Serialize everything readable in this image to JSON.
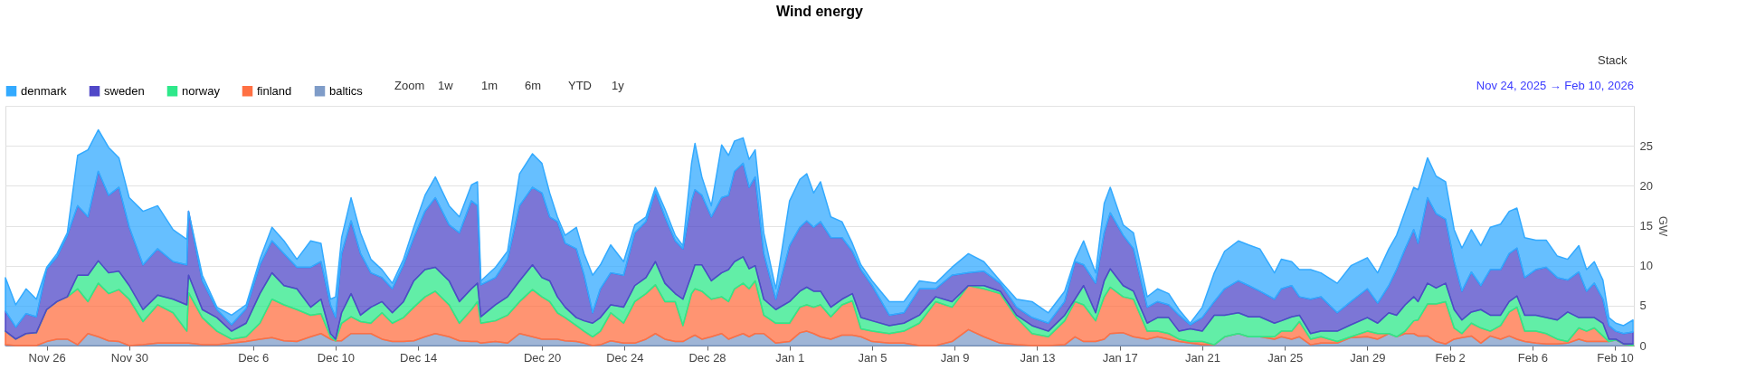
{
  "chart_data": {
    "type": "area",
    "title": "Wind energy",
    "ylabel": "GW",
    "stacked": true,
    "grid": "y",
    "legend": "top left",
    "annotations": [
      "Zoom",
      "1w",
      "1m",
      "6m",
      "YTD",
      "1y",
      "Stack",
      "Nov 24, 2025 → Feb 10, 2026"
    ],
    "xlim": [
      "2025-11-24T00:00",
      "2026-02-10T22:00"
    ],
    "xticks": [
      {
        "value": "2025-11-26",
        "label": "Nov 26"
      },
      {
        "value": "2025-11-30",
        "label": "Nov 30"
      },
      {
        "value": "2025-12-06",
        "label": "Dec 6"
      },
      {
        "value": "2025-12-10",
        "label": "Dec 10"
      },
      {
        "value": "2025-12-14",
        "label": "Dec 14"
      },
      {
        "value": "2025-12-20",
        "label": "Dec 20"
      },
      {
        "value": "2025-12-24",
        "label": "Dec 24"
      },
      {
        "value": "2025-12-28",
        "label": "Dec 28"
      },
      {
        "value": "2026-01-01",
        "label": "Jan 1"
      },
      {
        "value": "2026-01-05",
        "label": "Jan 5"
      },
      {
        "value": "2026-01-09",
        "label": "Jan 9"
      },
      {
        "value": "2026-01-13",
        "label": "Jan 13"
      },
      {
        "value": "2026-01-17",
        "label": "Jan 17"
      },
      {
        "value": "2026-01-21",
        "label": "Jan 21"
      },
      {
        "value": "2026-01-25",
        "label": "Jan 25"
      },
      {
        "value": "2026-01-29",
        "label": "Jan 29"
      },
      {
        "value": "2026-02-02",
        "label": "Feb 2"
      },
      {
        "value": "2026-02-06",
        "label": "Feb 6"
      },
      {
        "value": "2026-02-10",
        "label": "Feb 10"
      }
    ],
    "ylim": [
      0,
      30
    ],
    "yticks": [
      0,
      5,
      10,
      15,
      20,
      25,
      {
        "value": 30,
        "label": null
      }
    ],
    "x": [
      "2025-11-24T00:00",
      "2025-11-24T12:00",
      "2025-11-25T00:00",
      "2025-11-25T12:00",
      "2025-11-26T00:00",
      "2025-11-26T12:00",
      "2025-11-27T00:00",
      "2025-11-27T12:00",
      "2025-11-28T00:00",
      "2025-11-28T12:00",
      "2025-11-29T00:00",
      "2025-11-29T12:00",
      "2025-11-30T00:00",
      "2025-11-30T16:00",
      "2025-12-01T09:00",
      "2025-12-02T03:00",
      "2025-12-02T19:00",
      "2025-12-02T21:00",
      "2025-12-03T13:00",
      "2025-12-04T06:00",
      "2025-12-04T23:00",
      "2025-12-05T16:00",
      "2025-12-06T08:00",
      "2025-12-06T22:00",
      "2025-12-07T12:00",
      "2025-12-08T03:00",
      "2025-12-08T19:00",
      "2025-12-09T07:00",
      "2025-12-09T18:00",
      "2025-12-10T00:00",
      "2025-12-10T07:00",
      "2025-12-10T18:00",
      "2025-12-11T05:00",
      "2025-12-11T17:00",
      "2025-12-12T06:00",
      "2025-12-12T18:00",
      "2025-12-13T07:00",
      "2025-12-13T19:00",
      "2025-12-14T08:00",
      "2025-12-14T20:00",
      "2025-12-15T12:00",
      "2025-12-16T00:00",
      "2025-12-16T14:00",
      "2025-12-16T21:00",
      "2025-12-17T01:00",
      "2025-12-17T18:00",
      "2025-12-18T08:00",
      "2025-12-18T22:00",
      "2025-12-19T13:00",
      "2025-12-20T00:00",
      "2025-12-20T09:00",
      "2025-12-20T18:00",
      "2025-12-21T03:00",
      "2025-12-21T16:00",
      "2025-12-22T01:00",
      "2025-12-22T11:00",
      "2025-12-22T20:00",
      "2025-12-23T08:00",
      "2025-12-23T23:00",
      "2025-12-24T12:00",
      "2025-12-25T01:00",
      "2025-12-25T12:00",
      "2025-12-25T23:00",
      "2025-12-26T11:00",
      "2025-12-26T20:00",
      "2025-12-27T06:00",
      "2025-12-27T10:00",
      "2025-12-27T18:00",
      "2025-12-28T05:00",
      "2025-12-28T17:00",
      "2025-12-29T01:00",
      "2025-12-29T08:00",
      "2025-12-29T18:00",
      "2025-12-30T01:00",
      "2025-12-30T08:00",
      "2025-12-30T18:00",
      "2025-12-31T08:00",
      "2026-01-01T00:00",
      "2026-01-01T12:00",
      "2026-01-01T20:00",
      "2026-01-02T04:00",
      "2026-01-02T12:00",
      "2026-01-03T00:00",
      "2026-01-03T13:00",
      "2026-01-04T01:00",
      "2026-01-04T11:00",
      "2026-01-05T00:00",
      "2026-01-05T20:00",
      "2026-01-06T13:00",
      "2026-01-07T07:00",
      "2026-01-08T02:00",
      "2026-01-08T21:00",
      "2026-01-09T16:00",
      "2026-01-10T10:00",
      "2026-01-11T05:00",
      "2026-01-12T00:00",
      "2026-01-12T18:00",
      "2026-01-13T13:00",
      "2026-01-14T08:00",
      "2026-01-14T20:00",
      "2026-01-15T06:00",
      "2026-01-15T20:00",
      "2026-01-16T06:00",
      "2026-01-16T13:00",
      "2026-01-17T04:00",
      "2026-01-17T16:00",
      "2026-01-18T08:00",
      "2026-01-18T20:00",
      "2026-01-19T09:00",
      "2026-01-19T21:00",
      "2026-01-20T10:00",
      "2026-01-21T00:00",
      "2026-01-21T14:00",
      "2026-01-22T02:00",
      "2026-01-22T18:00",
      "2026-01-23T06:00",
      "2026-01-23T19:00",
      "2026-01-24T12:00",
      "2026-01-24T20:00",
      "2026-01-25T08:00",
      "2026-01-25T17:00",
      "2026-01-26T06:00",
      "2026-01-26T18:00",
      "2026-01-27T13:00",
      "2026-01-28T05:00",
      "2026-01-29T00:00",
      "2026-01-29T12:00",
      "2026-01-30T01:00",
      "2026-01-30T10:00",
      "2026-01-30T20:00",
      "2026-01-31T06:00",
      "2026-01-31T11:00",
      "2026-01-31T22:00",
      "2026-02-01T08:00",
      "2026-02-01T19:00",
      "2026-02-02T05:00",
      "2026-02-02T14:00",
      "2026-02-03T01:00",
      "2026-02-03T12:00",
      "2026-02-03T23:00",
      "2026-02-04T11:00",
      "2026-02-04T21:00",
      "2026-02-05T06:00",
      "2026-02-05T15:00",
      "2026-02-06T04:00",
      "2026-02-06T16:00",
      "2026-02-07T05:00",
      "2026-02-07T17:00",
      "2026-02-08T06:00",
      "2026-02-08T15:00",
      "2026-02-09T00:00",
      "2026-02-09T10:00",
      "2026-02-09T17:00",
      "2026-02-10T01:00",
      "2026-02-10T10:00",
      "2026-02-10T21:00"
    ],
    "series": [
      {
        "name": "baltics",
        "color": "#7f9cc8",
        "values": [
          0.1,
          0,
          0,
          0,
          0.5,
          0.8,
          0.8,
          0.1,
          1.5,
          1.1,
          0.6,
          0.5,
          0,
          0.1,
          0.3,
          0.3,
          0.3,
          0.3,
          0.1,
          0.1,
          0.3,
          0.5,
          0.8,
          1.0,
          0.6,
          0.5,
          1.1,
          1.5,
          0.8,
          0.6,
          0.6,
          1.5,
          1.5,
          1.5,
          0.8,
          0.5,
          0.5,
          0.6,
          1.1,
          1.5,
          1.1,
          0.6,
          0.5,
          0.5,
          0.3,
          0.5,
          0.3,
          1.5,
          1.1,
          0.8,
          0.8,
          0.8,
          0.6,
          0.5,
          0.3,
          0,
          0.1,
          0.6,
          0.3,
          0.3,
          0.8,
          1.5,
          0.8,
          0.5,
          0.5,
          1.1,
          1.3,
          0.8,
          1.1,
          1.5,
          0.8,
          1.1,
          1.5,
          1.1,
          1.5,
          1.5,
          0.3,
          0.5,
          1.6,
          1.8,
          1.5,
          1.1,
          0.8,
          1.3,
          1.3,
          1.1,
          0.5,
          0.3,
          0.3,
          0,
          0,
          0.5,
          2.0,
          1.1,
          0.3,
          0.1,
          0,
          0,
          0.1,
          1.1,
          0.5,
          0.5,
          0.8,
          1.5,
          1.6,
          1.1,
          0.8,
          1.1,
          0.8,
          0.5,
          0.3,
          0.1,
          0.1,
          1.1,
          1.5,
          1.1,
          1.1,
          0.8,
          1.1,
          0.8,
          1.1,
          0.1,
          0.3,
          0.3,
          1.0,
          1.1,
          0.8,
          1.5,
          1.1,
          1.5,
          1.5,
          1.2,
          1.2,
          0.5,
          0.2,
          0.8,
          1.0,
          1.2,
          0.3,
          1.2,
          0.8,
          1.2,
          0.8,
          0.5,
          0.3,
          0.2,
          0.2,
          0.3,
          0.8,
          0.5,
          0.5,
          0.5,
          0.5,
          0.7,
          0.2,
          0
        ]
      },
      {
        "name": "finland",
        "color": "#ff7043",
        "values": [
          1.7,
          0.8,
          1.5,
          1.6,
          4.0,
          4.7,
          5.3,
          7.0,
          4.0,
          6.7,
          5.9,
          6.5,
          5.8,
          2.9,
          4.8,
          3.8,
          1.5,
          6.3,
          3.4,
          1.7,
          0.5,
          0.6,
          2.0,
          4.8,
          4.5,
          4.0,
          2.7,
          2.5,
          0.3,
          0,
          2.2,
          2.1,
          1.5,
          1.3,
          3.3,
          2.3,
          3.0,
          4.2,
          5.0,
          5.3,
          4.0,
          2.2,
          4.0,
          5.0,
          2.5,
          2.6,
          3.5,
          4.0,
          5.9,
          5.3,
          4.7,
          3.3,
          2.9,
          2.0,
          1.5,
          1.1,
          1.7,
          3.5,
          2.5,
          5.2,
          5.7,
          6.1,
          4.7,
          5.0,
          2.0,
          5.4,
          5.8,
          6.0,
          4.7,
          4.6,
          4.7,
          6.0,
          6.3,
          6.0,
          6.6,
          2.3,
          2.5,
          2.3,
          3.2,
          3.3,
          3.3,
          4.0,
          2.8,
          3.8,
          4.3,
          1.0,
          1.3,
          1.2,
          1.5,
          2.8,
          5.5,
          4.3,
          5.5,
          6.0,
          6.2,
          3.4,
          1.5,
          1.1,
          3.0,
          4.4,
          4.6,
          2.6,
          5.3,
          5.8,
          4.5,
          4.7,
          1.0,
          0.7,
          0.7,
          0.3,
          0.2,
          0.4,
          0,
          0,
          0,
          0,
          0,
          0.3,
          0.7,
          1.0,
          1.9,
          0.7,
          0.8,
          0.2,
          0.1,
          0.7,
          0.7,
          0,
          0,
          0.3,
          1.6,
          2.0,
          4.0,
          4.7,
          5.3,
          1.4,
          0.5,
          1.6,
          1.9,
          0.6,
          1.7,
          3.0,
          4.0,
          1.3,
          1.5,
          1.3,
          0.6,
          0.2,
          1.4,
          1.3,
          1.7,
          0.7,
          0,
          0,
          0,
          0
        ]
      },
      {
        "name": "norway",
        "color": "#2ee88a",
        "values": [
          0,
          0,
          0,
          0,
          0,
          0,
          0,
          1.7,
          3.3,
          2.8,
          2.6,
          2.3,
          1.7,
          1.5,
          1.2,
          1.7,
          3.3,
          2.2,
          1.0,
          1.7,
          1.0,
          1.7,
          3.7,
          3.3,
          2.4,
          2.6,
          1.0,
          1.8,
          0.4,
          0.2,
          1.3,
          2.9,
          0.8,
          2.0,
          1.4,
          1.3,
          2.0,
          3.3,
          3.4,
          3.0,
          3.0,
          2.7,
          2.6,
          2.3,
          0.8,
          2.0,
          2.3,
          2.6,
          3.1,
          2.4,
          2.6,
          2.0,
          1.3,
          1.0,
          1.3,
          1.7,
          1.7,
          1.0,
          2.0,
          2.0,
          2.0,
          2.9,
          2.3,
          1.0,
          3.3,
          2.3,
          3.0,
          3.3,
          2.3,
          3.0,
          4.0,
          3.4,
          3.3,
          2.5,
          1.9,
          2.0,
          1.7,
          2.7,
          2.0,
          2.2,
          2.0,
          1.7,
          1.2,
          0.7,
          0.9,
          1.4,
          1.3,
          1.0,
          1.0,
          1.0,
          0.6,
          0.7,
          0,
          0.4,
          0.3,
          0.3,
          1.0,
          0.7,
          0.7,
          0.3,
          2.4,
          1.0,
          2.0,
          2.3,
          1.4,
          1.0,
          1.0,
          1.7,
          2.0,
          1.0,
          1.6,
          1.3,
          3.7,
          2.7,
          2.6,
          2.5,
          2.5,
          1.7,
          1.3,
          1.8,
          0.8,
          0.7,
          0.7,
          1.3,
          1.5,
          1.7,
          1.3,
          2.6,
          2.7,
          3.3,
          3.0,
          2.3,
          2.6,
          2.0,
          2.3,
          2.3,
          1.7,
          1.4,
          2.3,
          2.0,
          1.3,
          1.3,
          1.4,
          2.0,
          2.0,
          2.0,
          2.4,
          3.7,
          1.3,
          1.7,
          1.3,
          1.6,
          0.3,
          0.1,
          0,
          0.2
        ]
      },
      {
        "name": "sweden",
        "color": "#5048c8",
        "values": [
          2.5,
          1.5,
          2.5,
          2.0,
          5.1,
          5.6,
          7.7,
          8.7,
          7.3,
          11.2,
          9.7,
          10.5,
          7.3,
          5.6,
          5.8,
          4.7,
          5.0,
          8.0,
          3.6,
          1.0,
          0.8,
          1.8,
          3.6,
          4.0,
          4.0,
          2.7,
          5.0,
          4.7,
          3.6,
          2.7,
          7.4,
          9.1,
          7.7,
          4.3,
          3.0,
          3.0,
          4.6,
          5.4,
          7.3,
          8.7,
          7.0,
          8.6,
          11.0,
          9.7,
          4.0,
          3.4,
          4.7,
          9.4,
          9.7,
          10.6,
          8.0,
          9.4,
          8.0,
          8.6,
          5.7,
          1.3,
          3.6,
          4.0,
          4.0,
          6.6,
          7.0,
          8.8,
          8.3,
          6.6,
          6.3,
          9.3,
          9.4,
          8.7,
          8.0,
          9.4,
          9.3,
          11.3,
          11.7,
          10.2,
          11.1,
          5.7,
          1.3,
          7.0,
          8.0,
          8.3,
          8.0,
          8.7,
          8.7,
          7.7,
          5.3,
          6.0,
          4.4,
          1.3,
          1.3,
          3.3,
          1.0,
          3.3,
          1.6,
          1.8,
          1.0,
          1.0,
          1.0,
          1.0,
          1.7,
          4.7,
          2.6,
          3.7,
          6.0,
          7.0,
          6.3,
          5.3,
          2.0,
          2.0,
          1.6,
          2.0,
          0.5,
          1.7,
          1.7,
          3.3,
          4.0,
          3.9,
          3.2,
          3.0,
          4.0,
          3.9,
          2.3,
          4.3,
          4.3,
          2.3,
          2.9,
          3.6,
          2.5,
          3.4,
          5.7,
          7.0,
          8.4,
          7.3,
          10.7,
          9.3,
          8.0,
          6.0,
          3.6,
          5.0,
          3.0,
          5.7,
          5.7,
          6.0,
          6.0,
          4.7,
          5.7,
          6.3,
          5.3,
          4.0,
          5.7,
          3.3,
          4.3,
          3.0,
          1.7,
          1.0,
          1.3,
          1.5
        ]
      },
      {
        "name": "denmark",
        "color": "#33aaff",
        "values": [
          4.2,
          2.8,
          3.1,
          2.2,
          0.2,
          0.4,
          0.3,
          6.3,
          8.4,
          5.2,
          6.0,
          3.7,
          3.7,
          6.7,
          5.4,
          4.0,
          3.2,
          0,
          0.7,
          0.3,
          1.2,
          0.5,
          0.7,
          1.7,
          1.6,
          1.0,
          3.3,
          2.3,
          0.7,
          2.6,
          2.0,
          2.9,
          2.6,
          1.7,
          1.0,
          0.7,
          0.7,
          1.3,
          2.0,
          2.6,
          2.4,
          2.0,
          2.0,
          3.0,
          0.5,
          1.3,
          1.0,
          4.0,
          4.2,
          3.7,
          3.0,
          0.6,
          1.0,
          2.7,
          2.7,
          4.7,
          3.0,
          3.5,
          1.7,
          1.0,
          0.6,
          0.5,
          1.0,
          0.7,
          0.4,
          4.7,
          5.8,
          2.3,
          1.4,
          6.6,
          5.0,
          3.8,
          3.2,
          3.5,
          3.4,
          2.6,
          1.3,
          5.6,
          6.0,
          5.9,
          4.3,
          5.0,
          2.6,
          2.0,
          1.0,
          0.6,
          0.6,
          1.7,
          1.4,
          1.0,
          0.7,
          1.0,
          2.4,
          1.2,
          0.3,
          1.0,
          2.0,
          1.3,
          1.3,
          0.3,
          3.0,
          1.3,
          3.7,
          3.2,
          1.3,
          2.0,
          1.3,
          1.6,
          1.4,
          0.7,
          0.2,
          1.3,
          3.6,
          4.7,
          5.0,
          5.1,
          5.3,
          3.3,
          3.7,
          3.0,
          3.4,
          3.7,
          3.0,
          3.7,
          4.5,
          3.9,
          3.8,
          4.6,
          4.3,
          4.7,
          5.3,
          6.7,
          5.0,
          4.7,
          4.7,
          4.0,
          5.4,
          5.3,
          5.0,
          5.3,
          5.7,
          5.3,
          5.0,
          5.0,
          3.7,
          3.4,
          2.7,
          2.6,
          3.3,
          2.7,
          2.7,
          2.4,
          1.0,
          1.0,
          1.0,
          1.5
        ]
      }
    ]
  }
}
